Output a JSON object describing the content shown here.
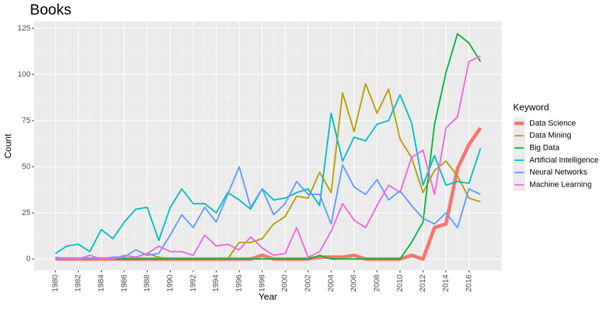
{
  "chart_data": {
    "type": "line",
    "title": "Books",
    "xlabel": "Year",
    "ylabel": "Count",
    "legend_title": "Keyword",
    "legend": "right",
    "grid": true,
    "x": [
      1980,
      1981,
      1982,
      1983,
      1984,
      1985,
      1986,
      1987,
      1988,
      1989,
      1990,
      1991,
      1992,
      1993,
      1994,
      1995,
      1996,
      1997,
      1998,
      1999,
      2000,
      2001,
      2002,
      2003,
      2004,
      2005,
      2006,
      2007,
      2008,
      2009,
      2010,
      2011,
      2012,
      2013,
      2014,
      2015,
      2016,
      2017
    ],
    "xlim": [
      1978.15,
      2018.85
    ],
    "xticks": [
      1980,
      1982,
      1984,
      1986,
      1988,
      1990,
      1992,
      1994,
      1996,
      1998,
      2000,
      2002,
      2004,
      2006,
      2008,
      2010,
      2012,
      2014,
      2016
    ],
    "ylim": [
      -6.1,
      128.8
    ],
    "yticks": [
      0,
      25,
      50,
      75,
      100,
      125
    ],
    "series": [
      {
        "name": "Data Science",
        "color": "#f8766d",
        "width": 5,
        "values": [
          0,
          0,
          0,
          0,
          0,
          0,
          0,
          0,
          0,
          0,
          0,
          0,
          0,
          0,
          0,
          0,
          0,
          0,
          2,
          0,
          0,
          0,
          0,
          1,
          1,
          1,
          2,
          0,
          0,
          0,
          0,
          2,
          0,
          17,
          19,
          49,
          62,
          71
        ]
      },
      {
        "name": "Data Mining",
        "color": "#b79f00",
        "width": 2,
        "values": [
          0,
          0,
          0,
          0,
          0,
          0,
          0,
          1,
          3,
          1,
          0,
          0,
          0,
          0,
          0,
          0,
          9,
          9,
          11,
          19,
          23,
          34,
          33,
          47,
          36,
          90,
          69,
          95,
          79,
          92,
          65,
          55,
          36,
          48,
          53,
          45,
          33,
          31
        ]
      },
      {
        "name": "Big Data",
        "color": "#00ba38",
        "width": 2,
        "values": [
          0,
          0,
          0,
          0,
          0,
          0,
          0,
          0,
          0,
          0,
          0,
          0,
          0,
          0,
          0,
          0,
          0,
          0,
          0,
          0,
          0,
          0,
          0,
          2,
          0,
          0,
          0,
          0,
          0,
          0,
          0,
          9,
          20,
          73,
          101,
          122,
          117,
          107
        ]
      },
      {
        "name": "Artificial Intelligence",
        "color": "#00bfc4",
        "width": 2,
        "values": [
          3,
          7,
          8,
          4,
          16,
          11,
          20,
          27,
          28,
          10,
          28,
          38,
          30,
          30,
          25,
          36,
          32,
          27,
          38,
          32,
          33,
          36,
          38,
          29,
          79,
          53,
          66,
          64,
          73,
          75,
          89,
          74,
          40,
          56,
          40,
          42,
          41,
          60
        ]
      },
      {
        "name": "Neural Networks",
        "color": "#619cff",
        "width": 2,
        "values": [
          1,
          0,
          0,
          0,
          0,
          1,
          1,
          5,
          2,
          3,
          13,
          24,
          17,
          28,
          20,
          35,
          50,
          28,
          38,
          24,
          30,
          42,
          35,
          35,
          19,
          51,
          39,
          35,
          43,
          32,
          37,
          29,
          22,
          19,
          25,
          17,
          38,
          35
        ]
      },
      {
        "name": "Machine Learning",
        "color": "#f564e3",
        "width": 2,
        "values": [
          0,
          0,
          0,
          2,
          0,
          0,
          2,
          1,
          3,
          7,
          4,
          4,
          2,
          13,
          7,
          8,
          5,
          12,
          6,
          2,
          3,
          17,
          1,
          4,
          15,
          30,
          21,
          17,
          29,
          40,
          36,
          55,
          59,
          35,
          71,
          77,
          107,
          110
        ]
      }
    ]
  }
}
